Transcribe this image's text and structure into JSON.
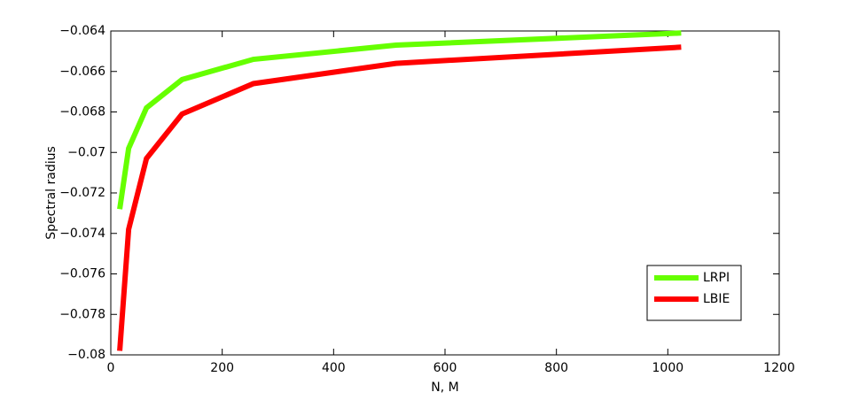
{
  "chart_data": {
    "type": "line",
    "xlabel": "N, M",
    "ylabel": "Spectral radius",
    "x": [
      16,
      32,
      64,
      128,
      256,
      512,
      1024
    ],
    "series": [
      {
        "name": "LRPI",
        "color": "#66ff00",
        "values": [
          -0.0728,
          -0.0698,
          -0.0678,
          -0.0664,
          -0.0654,
          -0.0647,
          -0.0641
        ]
      },
      {
        "name": "LBIE",
        "color": "#ff0000",
        "values": [
          -0.0798,
          -0.0738,
          -0.0703,
          -0.0681,
          -0.0666,
          -0.0656,
          -0.0648
        ]
      }
    ],
    "xlim": [
      0,
      1200
    ],
    "xticks": [
      0,
      200,
      400,
      600,
      800,
      1000,
      1200
    ],
    "ylim": [
      -0.08,
      -0.064
    ],
    "yticks": [
      {
        "value": -0.08,
        "label": "−0.08"
      },
      {
        "value": -0.078,
        "label": "−0.078"
      },
      {
        "value": -0.076,
        "label": "−0.076"
      },
      {
        "value": -0.074,
        "label": "−0.074"
      },
      {
        "value": -0.072,
        "label": "−0.072"
      },
      {
        "value": -0.07,
        "label": "−0.07"
      },
      {
        "value": -0.068,
        "label": "−0.068"
      },
      {
        "value": -0.066,
        "label": "−0.066"
      },
      {
        "value": -0.064,
        "label": "−0.064"
      }
    ],
    "grid": false,
    "legend": "lower right"
  }
}
